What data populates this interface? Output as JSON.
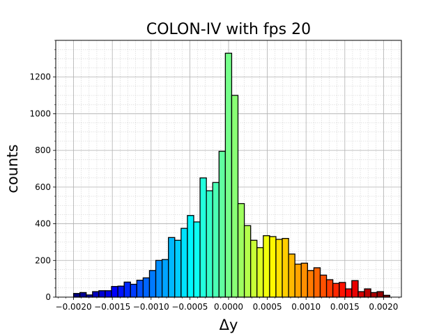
{
  "chart_data": {
    "type": "bar",
    "title": "COLON-IV with fps 20",
    "xlabel": "Δy",
    "ylabel": "counts",
    "xlim": [
      -0.00223,
      0.00223
    ],
    "ylim": [
      0,
      1400
    ],
    "x_ticks": [
      -0.002,
      -0.0015,
      -0.001,
      -0.0005,
      0.0,
      0.0005,
      0.001,
      0.0015,
      0.002
    ],
    "x_tick_labels": [
      "−0.0020",
      "−0.0015",
      "−0.0010",
      "−0.0005",
      "0.0000",
      "0.0005",
      "0.0010",
      "0.0015",
      "0.0020"
    ],
    "y_ticks": [
      0,
      200,
      400,
      600,
      800,
      1000,
      1200
    ],
    "y_tick_labels": [
      "0",
      "200",
      "400",
      "600",
      "800",
      "1000",
      "1200"
    ],
    "grid": true,
    "colormap": "jet",
    "bin_start": -0.002,
    "bin_width": 8.16e-05,
    "values": [
      20,
      25,
      12,
      30,
      35,
      35,
      58,
      60,
      82,
      70,
      92,
      105,
      145,
      200,
      205,
      325,
      310,
      375,
      445,
      410,
      650,
      580,
      625,
      795,
      1330,
      1100,
      510,
      390,
      310,
      270,
      335,
      330,
      315,
      320,
      235,
      180,
      185,
      145,
      160,
      120,
      95,
      75,
      80,
      45,
      90,
      30,
      45,
      25,
      30,
      10
    ]
  }
}
